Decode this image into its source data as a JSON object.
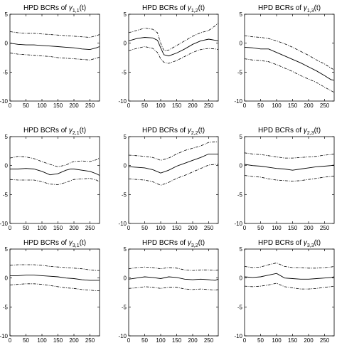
{
  "chart_data": [
    {
      "type": "line",
      "title_prefix": "HPD BCRs of ",
      "title_symbol": "γ",
      "title_sub": "1,1",
      "title_suffix": "(t)",
      "xlim": [
        0,
        280
      ],
      "ylim": [
        -10,
        5
      ],
      "xticks": [
        0,
        50,
        100,
        150,
        200,
        250
      ],
      "yticks": [
        -10,
        -5,
        0,
        5
      ],
      "x": [
        0,
        25,
        50,
        75,
        100,
        125,
        150,
        175,
        200,
        225,
        250,
        270,
        280
      ],
      "series": [
        {
          "role": "upper",
          "values": [
            2.0,
            1.8,
            1.7,
            1.7,
            1.6,
            1.5,
            1.4,
            1.3,
            1.2,
            1.1,
            1.0,
            1.3,
            1.5
          ]
        },
        {
          "role": "mean",
          "values": [
            0.0,
            -0.2,
            -0.3,
            -0.3,
            -0.4,
            -0.5,
            -0.6,
            -0.7,
            -0.8,
            -1.0,
            -1.1,
            -0.8,
            -0.6
          ]
        },
        {
          "role": "lower",
          "values": [
            -1.7,
            -1.9,
            -2.0,
            -2.1,
            -2.2,
            -2.3,
            -2.5,
            -2.6,
            -2.7,
            -2.8,
            -2.9,
            -2.6,
            -2.4
          ]
        }
      ]
    },
    {
      "type": "line",
      "title_prefix": "HPD BCRs of ",
      "title_symbol": "γ",
      "title_sub": "1,2",
      "title_suffix": "(t)",
      "xlim": [
        0,
        280
      ],
      "ylim": [
        -10,
        5
      ],
      "xticks": [
        0,
        50,
        100,
        150,
        200,
        250
      ],
      "yticks": [
        -10,
        -5,
        0,
        5
      ],
      "x": [
        0,
        25,
        50,
        75,
        90,
        100,
        110,
        125,
        150,
        175,
        200,
        225,
        250,
        270,
        280
      ],
      "series": [
        {
          "role": "upper",
          "values": [
            1.8,
            2.2,
            2.6,
            2.4,
            1.8,
            0.0,
            -1.3,
            -1.2,
            -0.4,
            0.4,
            1.2,
            1.8,
            2.2,
            3.0,
            3.5
          ]
        },
        {
          "role": "mean",
          "values": [
            0.4,
            0.8,
            1.0,
            0.9,
            0.5,
            -0.8,
            -2.0,
            -2.2,
            -1.7,
            -1.0,
            -0.2,
            0.4,
            0.7,
            0.5,
            0.4
          ]
        },
        {
          "role": "lower",
          "values": [
            -1.3,
            -0.9,
            -0.6,
            -0.9,
            -1.6,
            -2.7,
            -3.3,
            -3.5,
            -3.0,
            -2.3,
            -1.6,
            -1.1,
            -0.9,
            -1.0,
            -1.1
          ]
        }
      ]
    },
    {
      "type": "line",
      "title_prefix": "HPD BCRs of ",
      "title_symbol": "γ",
      "title_sub": "1,3",
      "title_suffix": "(t)",
      "xlim": [
        0,
        280
      ],
      "ylim": [
        -10,
        5
      ],
      "xticks": [
        0,
        50,
        100,
        150,
        200,
        250
      ],
      "yticks": [
        -10,
        -5,
        0,
        5
      ],
      "x": [
        0,
        25,
        50,
        75,
        100,
        125,
        150,
        175,
        200,
        225,
        250,
        270,
        280
      ],
      "series": [
        {
          "role": "upper",
          "values": [
            1.3,
            1.1,
            1.0,
            0.8,
            0.4,
            -0.1,
            -0.7,
            -1.4,
            -2.1,
            -2.9,
            -3.6,
            -4.3,
            -4.6
          ]
        },
        {
          "role": "mean",
          "values": [
            -0.7,
            -0.8,
            -1.0,
            -1.0,
            -1.6,
            -2.2,
            -2.8,
            -3.4,
            -4.1,
            -4.8,
            -5.6,
            -6.3,
            -6.4
          ]
        },
        {
          "role": "lower",
          "values": [
            -2.7,
            -2.9,
            -3.0,
            -3.2,
            -3.7,
            -4.3,
            -4.9,
            -5.6,
            -6.2,
            -6.8,
            -7.6,
            -8.2,
            -8.5
          ]
        }
      ]
    },
    {
      "type": "line",
      "title_prefix": "HPD BCRs of ",
      "title_symbol": "γ",
      "title_sub": "2,1",
      "title_suffix": "(t)",
      "xlim": [
        0,
        280
      ],
      "ylim": [
        -10,
        5
      ],
      "xticks": [
        0,
        50,
        100,
        150,
        200,
        250
      ],
      "yticks": [
        -10,
        -5,
        0,
        5
      ],
      "x": [
        0,
        25,
        50,
        75,
        100,
        125,
        150,
        175,
        190,
        200,
        225,
        250,
        270,
        280
      ],
      "series": [
        {
          "role": "upper",
          "values": [
            1.3,
            1.6,
            1.5,
            1.2,
            0.7,
            0.2,
            -0.2,
            0.1,
            0.5,
            0.7,
            0.8,
            0.7,
            1.0,
            1.3
          ]
        },
        {
          "role": "mean",
          "values": [
            -0.6,
            -0.6,
            -0.5,
            -0.6,
            -1.0,
            -1.6,
            -1.4,
            -0.8,
            -0.6,
            -0.6,
            -0.8,
            -1.0,
            -1.4,
            -1.7
          ]
        },
        {
          "role": "lower",
          "values": [
            -2.4,
            -2.5,
            -2.5,
            -2.5,
            -2.8,
            -3.2,
            -3.3,
            -2.9,
            -2.6,
            -2.4,
            -2.3,
            -2.2,
            -2.5,
            -2.8
          ]
        }
      ]
    },
    {
      "type": "line",
      "title_prefix": "HPD BCRs of ",
      "title_symbol": "γ",
      "title_sub": "2,2",
      "title_suffix": "(t)",
      "xlim": [
        0,
        280
      ],
      "ylim": [
        -10,
        5
      ],
      "xticks": [
        0,
        50,
        100,
        150,
        200,
        250
      ],
      "yticks": [
        -10,
        -5,
        0,
        5
      ],
      "x": [
        0,
        25,
        50,
        75,
        100,
        125,
        150,
        175,
        200,
        225,
        250,
        270,
        280
      ],
      "series": [
        {
          "role": "upper",
          "values": [
            1.8,
            1.7,
            1.6,
            1.4,
            0.9,
            1.3,
            2.0,
            2.6,
            3.0,
            3.4,
            4.0,
            4.1,
            4.1
          ]
        },
        {
          "role": "mean",
          "values": [
            -0.2,
            -0.3,
            -0.4,
            -0.7,
            -1.3,
            -0.8,
            -0.1,
            0.4,
            0.9,
            1.4,
            2.0,
            2.0,
            2.0
          ]
        },
        {
          "role": "lower",
          "values": [
            -2.3,
            -2.4,
            -2.5,
            -2.8,
            -3.4,
            -2.9,
            -2.2,
            -1.7,
            -1.1,
            -0.5,
            0.1,
            0.2,
            0.2
          ]
        }
      ]
    },
    {
      "type": "line",
      "title_prefix": "HPD BCRs of ",
      "title_symbol": "γ",
      "title_sub": "2,3",
      "title_suffix": "(t)",
      "xlim": [
        0,
        280
      ],
      "ylim": [
        -10,
        5
      ],
      "xticks": [
        0,
        50,
        100,
        150,
        200,
        250
      ],
      "yticks": [
        -10,
        -5,
        0,
        5
      ],
      "x": [
        0,
        25,
        50,
        75,
        100,
        125,
        150,
        175,
        200,
        225,
        250,
        270,
        280
      ],
      "series": [
        {
          "role": "upper",
          "values": [
            2.2,
            2.0,
            1.9,
            1.7,
            1.5,
            1.3,
            1.3,
            1.4,
            1.5,
            1.6,
            1.8,
            1.9,
            2.0
          ]
        },
        {
          "role": "mean",
          "values": [
            0.2,
            0.0,
            -0.1,
            -0.3,
            -0.5,
            -0.6,
            -0.8,
            -0.6,
            -0.4,
            -0.2,
            -0.1,
            0.0,
            0.1
          ]
        },
        {
          "role": "lower",
          "values": [
            -1.7,
            -1.9,
            -2.0,
            -2.3,
            -2.5,
            -2.6,
            -2.7,
            -2.6,
            -2.4,
            -2.2,
            -2.0,
            -1.9,
            -1.8
          ]
        }
      ]
    },
    {
      "type": "line",
      "title_prefix": "HPD BCRs of ",
      "title_symbol": "γ",
      "title_sub": "3,1",
      "title_suffix": "(t)",
      "xlim": [
        0,
        280
      ],
      "ylim": [
        -10,
        5
      ],
      "xticks": [
        0,
        50,
        100,
        150,
        200,
        250
      ],
      "yticks": [
        -10,
        -5,
        0,
        5
      ],
      "x": [
        0,
        25,
        50,
        75,
        100,
        125,
        150,
        175,
        200,
        225,
        250,
        270,
        280
      ],
      "series": [
        {
          "role": "upper",
          "values": [
            2.2,
            2.3,
            2.3,
            2.3,
            2.2,
            2.0,
            1.9,
            1.8,
            1.7,
            1.6,
            1.4,
            1.3,
            1.3
          ]
        },
        {
          "role": "mean",
          "values": [
            0.4,
            0.4,
            0.5,
            0.5,
            0.4,
            0.3,
            0.2,
            0.0,
            -0.1,
            -0.3,
            -0.4,
            -0.4,
            -0.4
          ]
        },
        {
          "role": "lower",
          "values": [
            -1.2,
            -1.1,
            -1.0,
            -1.0,
            -1.1,
            -1.3,
            -1.5,
            -1.7,
            -1.8,
            -2.0,
            -2.1,
            -2.2,
            -2.2
          ]
        }
      ]
    },
    {
      "type": "line",
      "title_prefix": "HPD BCRs of ",
      "title_symbol": "γ",
      "title_sub": "3,2",
      "title_suffix": "(t)",
      "xlim": [
        0,
        280
      ],
      "ylim": [
        -10,
        5
      ],
      "xticks": [
        0,
        50,
        100,
        150,
        200,
        250
      ],
      "yticks": [
        -10,
        -5,
        0,
        5
      ],
      "x": [
        0,
        25,
        50,
        75,
        100,
        125,
        150,
        175,
        200,
        225,
        250,
        270,
        280
      ],
      "series": [
        {
          "role": "upper",
          "values": [
            1.6,
            1.8,
            1.9,
            1.8,
            1.6,
            1.8,
            1.7,
            1.4,
            1.3,
            1.4,
            1.4,
            1.3,
            1.4
          ]
        },
        {
          "role": "mean",
          "values": [
            -0.2,
            0.0,
            0.2,
            0.1,
            -0.1,
            0.2,
            0.1,
            -0.2,
            -0.3,
            -0.2,
            -0.3,
            -0.4,
            -0.2
          ]
        },
        {
          "role": "lower",
          "values": [
            -1.8,
            -1.7,
            -1.5,
            -1.6,
            -1.8,
            -1.6,
            -1.6,
            -1.9,
            -2.0,
            -1.9,
            -2.0,
            -2.1,
            -2.0
          ]
        }
      ]
    },
    {
      "type": "line",
      "title_prefix": "HPD BCRs of ",
      "title_symbol": "γ",
      "title_sub": "3,3",
      "title_suffix": "(t)",
      "xlim": [
        0,
        280
      ],
      "ylim": [
        -10,
        5
      ],
      "xticks": [
        0,
        50,
        100,
        150,
        200,
        250
      ],
      "yticks": [
        -10,
        -5,
        0,
        5
      ],
      "x": [
        0,
        25,
        50,
        75,
        100,
        125,
        150,
        175,
        200,
        225,
        250,
        270,
        280
      ],
      "series": [
        {
          "role": "upper",
          "values": [
            2.0,
            1.8,
            1.9,
            2.3,
            2.6,
            2.0,
            1.8,
            1.8,
            1.7,
            1.7,
            1.8,
            1.9,
            2.0
          ]
        },
        {
          "role": "mean",
          "values": [
            0.2,
            0.1,
            0.2,
            0.5,
            0.8,
            0.0,
            -0.1,
            -0.2,
            -0.2,
            -0.1,
            0.0,
            0.1,
            0.2
          ]
        },
        {
          "role": "lower",
          "values": [
            -1.4,
            -1.5,
            -1.4,
            -1.2,
            -0.9,
            -1.5,
            -1.7,
            -1.9,
            -1.9,
            -1.8,
            -1.6,
            -1.5,
            -1.4
          ]
        }
      ]
    }
  ]
}
